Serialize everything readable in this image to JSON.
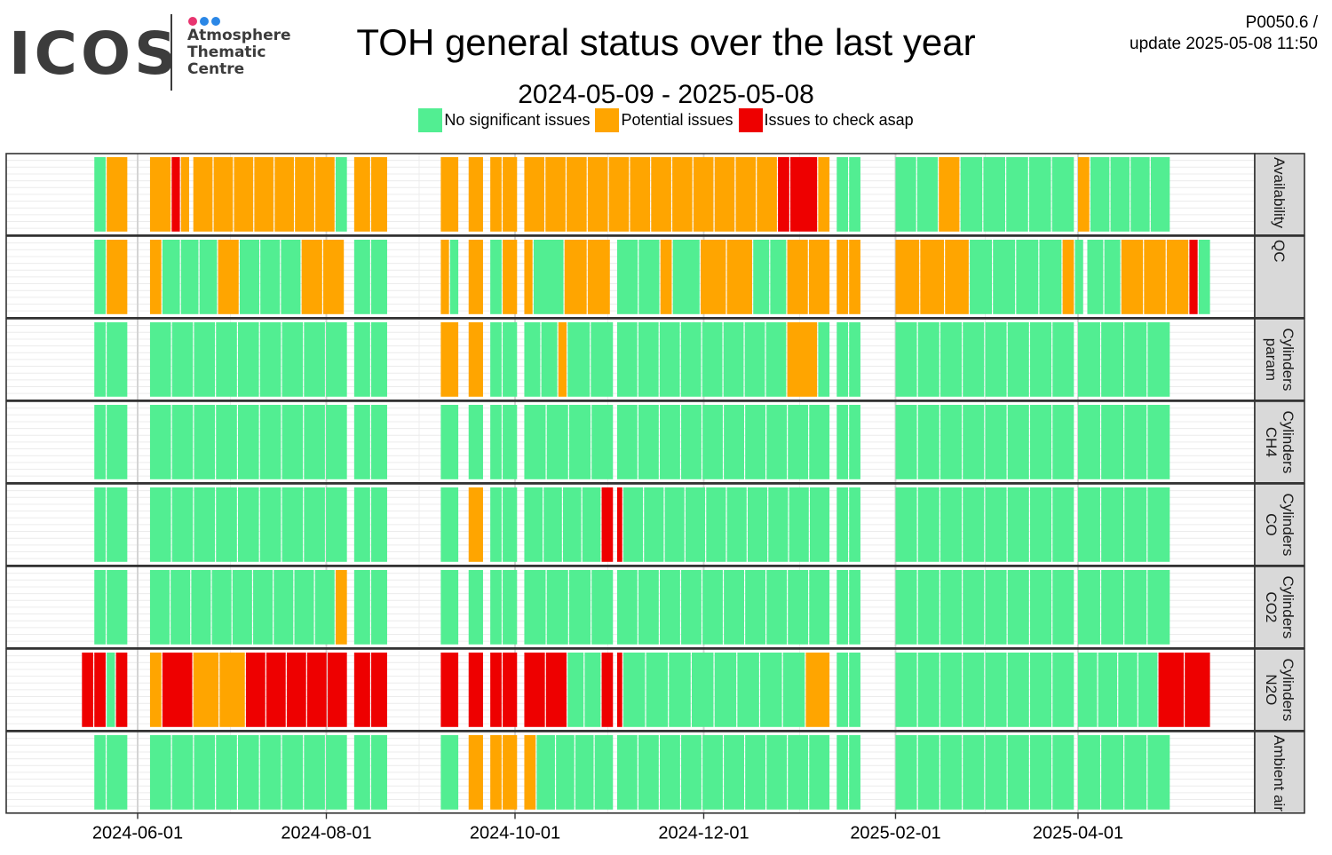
{
  "header": {
    "logo_text": "ICOS",
    "logo_subtitle": "Atmosphere\nThematic\nCentre",
    "logo_dot_colors": [
      "#e8346f",
      "#2b87e6",
      "#2b87e6"
    ],
    "title": "TOH general status over the last year",
    "subtitle": "2024-05-09 - 2025-05-08",
    "corner_line1": "P0050.6 /",
    "corner_line2": "update  2025-05-08 11:50"
  },
  "legend": [
    {
      "label": "No significant issues",
      "color": "#52ee92"
    },
    {
      "label": "Potential issues",
      "color": "#ffa500"
    },
    {
      "label": "Issues to check asap",
      "color": "#ee0000"
    }
  ],
  "chart_data": {
    "type": "heatmap",
    "title": "TOH general status over the last year",
    "subtitle": "2024-05-09 - 2025-05-08",
    "x_range": [
      "2024-05-09",
      "2025-05-08"
    ],
    "x_ticks": [
      "2024-06-01",
      "2024-08-01",
      "2024-10-01",
      "2024-12-01",
      "2025-02-01",
      "2025-04-01"
    ],
    "status_colors": {
      "G": "#52ee92",
      "O": "#ffa500",
      "R": "#ee0000"
    },
    "grid": true,
    "legend_position": "top",
    "panels": [
      {
        "label": "Availability",
        "segments": [
          [
            "2024-05-18",
            "2024-05-21",
            "G"
          ],
          [
            "2024-05-22",
            "2024-05-28",
            "O"
          ],
          [
            "2024-06-05",
            "2024-06-11",
            "O"
          ],
          [
            "2024-06-12",
            "2024-06-14",
            "R"
          ],
          [
            "2024-06-15",
            "2024-06-17",
            "O"
          ],
          [
            "2024-06-19",
            "2024-08-03",
            "O"
          ],
          [
            "2024-08-04",
            "2024-08-07",
            "G"
          ],
          [
            "2024-08-10",
            "2024-08-20",
            "O"
          ],
          [
            "2024-09-07",
            "2024-09-12",
            "O"
          ],
          [
            "2024-09-16",
            "2024-09-20",
            "O"
          ],
          [
            "2024-09-23",
            "2024-09-26",
            "O"
          ],
          [
            "2024-09-27",
            "2024-10-01",
            "O"
          ],
          [
            "2024-10-04",
            "2024-11-13",
            "O"
          ],
          [
            "2024-11-14",
            "2024-12-24",
            "O"
          ],
          [
            "2024-12-25",
            "2024-12-28",
            "R"
          ],
          [
            "2024-12-29",
            "2025-01-06",
            "R"
          ],
          [
            "2025-01-07",
            "2025-01-10",
            "O"
          ],
          [
            "2025-01-13",
            "2025-01-16",
            "G"
          ],
          [
            "2025-01-17",
            "2025-01-20",
            "G"
          ],
          [
            "2025-02-01",
            "2025-02-14",
            "G"
          ],
          [
            "2025-02-15",
            "2025-02-21",
            "O"
          ],
          [
            "2025-02-22",
            "2025-03-30",
            "G"
          ],
          [
            "2025-04-01",
            "2025-04-04",
            "O"
          ],
          [
            "2025-04-05",
            "2025-04-30",
            "G"
          ]
        ]
      },
      {
        "label": "QC",
        "segments": [
          [
            "2024-05-18",
            "2024-05-21",
            "G"
          ],
          [
            "2024-05-22",
            "2024-05-28",
            "O"
          ],
          [
            "2024-06-05",
            "2024-06-08",
            "O"
          ],
          [
            "2024-06-09",
            "2024-06-26",
            "G"
          ],
          [
            "2024-06-27",
            "2024-07-03",
            "O"
          ],
          [
            "2024-07-04",
            "2024-07-23",
            "G"
          ],
          [
            "2024-07-24",
            "2024-08-06",
            "O"
          ],
          [
            "2024-08-10",
            "2024-08-20",
            "G"
          ],
          [
            "2024-09-07",
            "2024-09-09",
            "O"
          ],
          [
            "2024-09-10",
            "2024-09-12",
            "G"
          ],
          [
            "2024-09-16",
            "2024-09-20",
            "O"
          ],
          [
            "2024-09-23",
            "2024-09-26",
            "G"
          ],
          [
            "2024-09-27",
            "2024-10-01",
            "O"
          ],
          [
            "2024-10-04",
            "2024-10-06",
            "O"
          ],
          [
            "2024-10-07",
            "2024-10-16",
            "G"
          ],
          [
            "2024-10-17",
            "2024-10-31",
            "O"
          ],
          [
            "2024-11-03",
            "2024-11-16",
            "G"
          ],
          [
            "2024-11-17",
            "2024-11-20",
            "O"
          ],
          [
            "2024-11-21",
            "2024-11-29",
            "G"
          ],
          [
            "2024-11-30",
            "2024-12-16",
            "O"
          ],
          [
            "2024-12-17",
            "2024-12-27",
            "G"
          ],
          [
            "2024-12-28",
            "2025-01-10",
            "O"
          ],
          [
            "2025-01-13",
            "2025-01-16",
            "O"
          ],
          [
            "2025-01-17",
            "2025-01-20",
            "O"
          ],
          [
            "2025-02-01",
            "2025-02-24",
            "O"
          ],
          [
            "2025-02-25",
            "2025-03-26",
            "G"
          ],
          [
            "2025-03-27",
            "2025-03-30",
            "O"
          ],
          [
            "2025-03-31",
            "2025-04-02",
            "G"
          ],
          [
            "2025-04-04",
            "2025-04-14",
            "G"
          ],
          [
            "2025-04-15",
            "2025-05-06",
            "O"
          ],
          [
            "2025-05-07",
            "2025-05-09",
            "R"
          ],
          [
            "2025-05-10",
            "2025-05-13",
            "G"
          ]
        ]
      },
      {
        "label": "Cylinders\nparam",
        "segments": [
          [
            "2024-05-18",
            "2024-05-21",
            "G"
          ],
          [
            "2024-05-22",
            "2024-05-28",
            "G"
          ],
          [
            "2024-06-05",
            "2024-08-07",
            "G"
          ],
          [
            "2024-08-10",
            "2024-08-20",
            "G"
          ],
          [
            "2024-09-07",
            "2024-09-12",
            "O"
          ],
          [
            "2024-09-16",
            "2024-09-20",
            "O"
          ],
          [
            "2024-09-23",
            "2024-09-26",
            "G"
          ],
          [
            "2024-09-27",
            "2024-10-01",
            "G"
          ],
          [
            "2024-10-04",
            "2024-10-14",
            "G"
          ],
          [
            "2024-10-15",
            "2024-10-17",
            "O"
          ],
          [
            "2024-10-18",
            "2024-11-01",
            "G"
          ],
          [
            "2024-11-03",
            "2024-12-27",
            "G"
          ],
          [
            "2024-12-28",
            "2025-01-06",
            "O"
          ],
          [
            "2025-01-07",
            "2025-01-10",
            "G"
          ],
          [
            "2025-01-13",
            "2025-01-16",
            "G"
          ],
          [
            "2025-01-17",
            "2025-01-20",
            "G"
          ],
          [
            "2025-02-01",
            "2025-03-30",
            "G"
          ],
          [
            "2025-04-01",
            "2025-04-30",
            "G"
          ]
        ]
      },
      {
        "label": "Cylinders\nCH4",
        "segments": [
          [
            "2024-05-18",
            "2024-05-21",
            "G"
          ],
          [
            "2024-05-22",
            "2024-05-28",
            "G"
          ],
          [
            "2024-06-05",
            "2024-08-07",
            "G"
          ],
          [
            "2024-08-10",
            "2024-08-20",
            "G"
          ],
          [
            "2024-09-07",
            "2024-09-12",
            "G"
          ],
          [
            "2024-09-16",
            "2024-09-20",
            "G"
          ],
          [
            "2024-09-23",
            "2024-09-26",
            "G"
          ],
          [
            "2024-09-27",
            "2024-10-01",
            "G"
          ],
          [
            "2024-10-04",
            "2024-11-01",
            "G"
          ],
          [
            "2024-11-03",
            "2025-01-10",
            "G"
          ],
          [
            "2025-01-13",
            "2025-01-16",
            "G"
          ],
          [
            "2025-01-17",
            "2025-01-20",
            "G"
          ],
          [
            "2025-02-01",
            "2025-03-30",
            "G"
          ],
          [
            "2025-04-01",
            "2025-04-30",
            "G"
          ]
        ]
      },
      {
        "label": "Cylinders\nCO",
        "segments": [
          [
            "2024-05-18",
            "2024-05-21",
            "G"
          ],
          [
            "2024-05-22",
            "2024-05-28",
            "G"
          ],
          [
            "2024-06-05",
            "2024-08-07",
            "G"
          ],
          [
            "2024-08-10",
            "2024-08-20",
            "G"
          ],
          [
            "2024-09-07",
            "2024-09-12",
            "G"
          ],
          [
            "2024-09-16",
            "2024-09-20",
            "O"
          ],
          [
            "2024-09-23",
            "2024-09-26",
            "G"
          ],
          [
            "2024-09-27",
            "2024-10-01",
            "G"
          ],
          [
            "2024-10-04",
            "2024-10-28",
            "G"
          ],
          [
            "2024-10-29",
            "2024-11-01",
            "R"
          ],
          [
            "2024-11-03",
            "2024-11-04",
            "R"
          ],
          [
            "2024-11-05",
            "2025-01-10",
            "G"
          ],
          [
            "2025-01-13",
            "2025-01-16",
            "G"
          ],
          [
            "2025-01-17",
            "2025-01-20",
            "G"
          ],
          [
            "2025-02-01",
            "2025-03-30",
            "G"
          ],
          [
            "2025-04-01",
            "2025-04-30",
            "G"
          ]
        ]
      },
      {
        "label": "Cylinders\nCO2",
        "segments": [
          [
            "2024-05-18",
            "2024-05-21",
            "G"
          ],
          [
            "2024-05-22",
            "2024-05-28",
            "G"
          ],
          [
            "2024-06-05",
            "2024-08-03",
            "G"
          ],
          [
            "2024-08-04",
            "2024-08-07",
            "O"
          ],
          [
            "2024-08-10",
            "2024-08-20",
            "G"
          ],
          [
            "2024-09-07",
            "2024-09-12",
            "G"
          ],
          [
            "2024-09-16",
            "2024-09-20",
            "G"
          ],
          [
            "2024-09-23",
            "2024-09-26",
            "G"
          ],
          [
            "2024-09-27",
            "2024-10-01",
            "G"
          ],
          [
            "2024-10-04",
            "2024-11-01",
            "G"
          ],
          [
            "2024-11-03",
            "2025-01-10",
            "G"
          ],
          [
            "2025-01-13",
            "2025-01-16",
            "G"
          ],
          [
            "2025-01-17",
            "2025-01-20",
            "G"
          ],
          [
            "2025-02-01",
            "2025-03-30",
            "G"
          ],
          [
            "2025-04-01",
            "2025-04-30",
            "G"
          ]
        ]
      },
      {
        "label": "Cylinders\nN2O",
        "segments": [
          [
            "2024-05-14",
            "2024-05-17",
            "R"
          ],
          [
            "2024-05-18",
            "2024-05-21",
            "R"
          ],
          [
            "2024-05-22",
            "2024-05-24",
            "G"
          ],
          [
            "2024-05-25",
            "2024-05-28",
            "R"
          ],
          [
            "2024-06-05",
            "2024-06-08",
            "O"
          ],
          [
            "2024-06-09",
            "2024-06-18",
            "R"
          ],
          [
            "2024-06-19",
            "2024-07-05",
            "O"
          ],
          [
            "2024-07-06",
            "2024-08-07",
            "R"
          ],
          [
            "2024-08-10",
            "2024-08-20",
            "R"
          ],
          [
            "2024-09-07",
            "2024-09-12",
            "R"
          ],
          [
            "2024-09-16",
            "2024-09-20",
            "R"
          ],
          [
            "2024-09-23",
            "2024-09-26",
            "R"
          ],
          [
            "2024-09-27",
            "2024-10-01",
            "R"
          ],
          [
            "2024-10-04",
            "2024-10-17",
            "R"
          ],
          [
            "2024-10-18",
            "2024-10-28",
            "G"
          ],
          [
            "2024-10-29",
            "2024-11-01",
            "R"
          ],
          [
            "2024-11-03",
            "2024-11-04",
            "R"
          ],
          [
            "2024-11-05",
            "2025-01-02",
            "G"
          ],
          [
            "2025-01-03",
            "2025-01-10",
            "O"
          ],
          [
            "2025-01-13",
            "2025-01-16",
            "G"
          ],
          [
            "2025-01-17",
            "2025-01-20",
            "G"
          ],
          [
            "2025-02-01",
            "2025-03-30",
            "G"
          ],
          [
            "2025-04-01",
            "2025-04-26",
            "G"
          ],
          [
            "2025-04-27",
            "2025-05-13",
            "R"
          ]
        ]
      },
      {
        "label": "Ambient air",
        "segments": [
          [
            "2024-05-18",
            "2024-05-21",
            "G"
          ],
          [
            "2024-05-22",
            "2024-05-28",
            "G"
          ],
          [
            "2024-06-05",
            "2024-08-07",
            "G"
          ],
          [
            "2024-08-10",
            "2024-08-20",
            "G"
          ],
          [
            "2024-09-07",
            "2024-09-12",
            "G"
          ],
          [
            "2024-09-16",
            "2024-09-20",
            "O"
          ],
          [
            "2024-09-23",
            "2024-09-26",
            "O"
          ],
          [
            "2024-09-27",
            "2024-10-01",
            "O"
          ],
          [
            "2024-10-04",
            "2024-10-07",
            "O"
          ],
          [
            "2024-10-08",
            "2024-11-01",
            "G"
          ],
          [
            "2024-11-03",
            "2025-01-10",
            "G"
          ],
          [
            "2025-01-13",
            "2025-01-16",
            "G"
          ],
          [
            "2025-01-17",
            "2025-01-20",
            "G"
          ],
          [
            "2025-02-01",
            "2025-03-30",
            "G"
          ],
          [
            "2025-04-01",
            "2025-04-30",
            "G"
          ]
        ]
      }
    ]
  }
}
